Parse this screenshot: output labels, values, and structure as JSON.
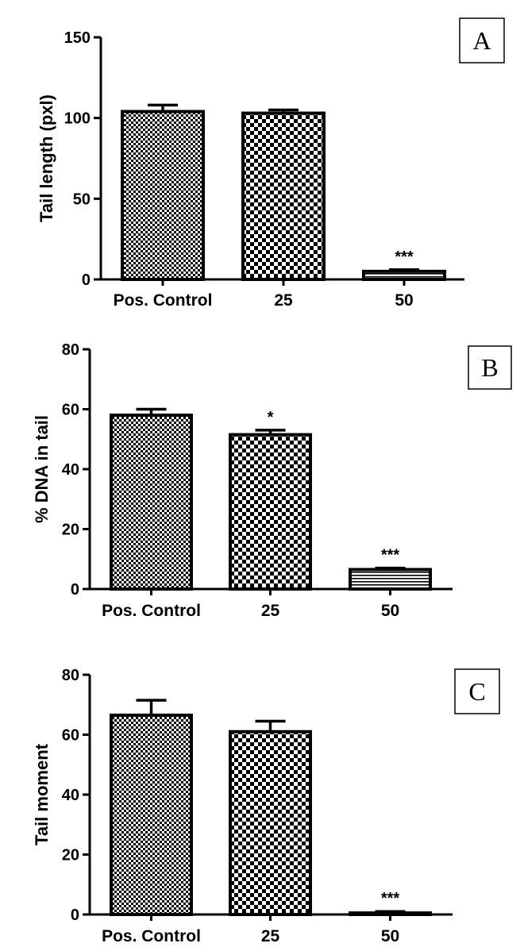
{
  "chart_data": [
    {
      "type": "bar",
      "panel_label": "A",
      "ylabel": "Tail length (pxl)",
      "categories": [
        "Pos. Control",
        "25",
        "50"
      ],
      "values": [
        104,
        103,
        5
      ],
      "errors": [
        4,
        2,
        1
      ],
      "significance": [
        "",
        "",
        "***"
      ],
      "patterns": [
        "fine-check",
        "check",
        "hstripe"
      ],
      "ylim": [
        0,
        150
      ],
      "yticks": [
        0,
        50,
        100,
        150
      ],
      "grid": false
    },
    {
      "type": "bar",
      "panel_label": "B",
      "ylabel": "% DNA in tail",
      "categories": [
        "Pos. Control",
        "25",
        "50"
      ],
      "values": [
        58,
        51.5,
        6.5
      ],
      "errors": [
        2,
        1.5,
        0.5
      ],
      "significance": [
        "",
        "*",
        "***"
      ],
      "patterns": [
        "fine-check",
        "check",
        "hstripe"
      ],
      "ylim": [
        0,
        80
      ],
      "yticks": [
        0,
        20,
        40,
        60,
        80
      ],
      "grid": false
    },
    {
      "type": "bar",
      "panel_label": "C",
      "ylabel": "Tail moment",
      "categories": [
        "Pos. Control",
        "25",
        "50"
      ],
      "values": [
        66.5,
        61,
        0.5
      ],
      "errors": [
        5,
        3.5,
        0.5
      ],
      "significance": [
        "",
        "",
        "***"
      ],
      "patterns": [
        "fine-check",
        "check",
        "hstripe"
      ],
      "ylim": [
        0,
        80
      ],
      "yticks": [
        0,
        20,
        40,
        60,
        80
      ],
      "grid": false
    }
  ],
  "colors": {
    "ink": "#000000",
    "background": "#ffffff"
  }
}
